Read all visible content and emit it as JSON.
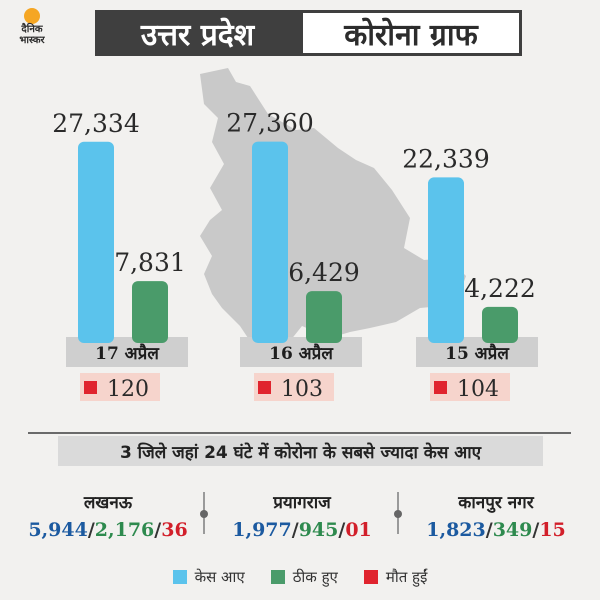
{
  "header": {
    "logo_line1": "दैनिक",
    "logo_line2": "भास्कर",
    "title_left": "उत्तर प्रदेश",
    "title_right": "कोरोना ग्राफ"
  },
  "colors": {
    "cases": "#5bc3ec",
    "recovered": "#4a9b6a",
    "deaths": "#e0242e",
    "date_band": "#cfcfcf",
    "death_box": "#f6d4cc",
    "map": "#c9c9c9"
  },
  "chart_data": {
    "type": "bar",
    "categories": [
      "17 अप्रैल",
      "16 अप्रैल",
      "15 अप्रैल"
    ],
    "series": [
      {
        "values": [
          27334,
          27360,
          22339
        ],
        "labels": [
          "27,334",
          "27,360",
          "22,339"
        ]
      },
      {
        "values": [
          7831,
          6429,
          4222
        ],
        "labels": [
          "7,831",
          "6,429",
          "4,222"
        ]
      }
    ],
    "deaths": [
      120,
      103,
      104
    ],
    "deaths_labels": [
      "120",
      "103",
      "104"
    ],
    "ylim": [
      0,
      28000
    ]
  },
  "subtitle": "3 जिले जहां 24 घंटे में कोरोना के सबसे ज्यादा केस आए",
  "districts": [
    {
      "name": "लखनऊ",
      "cases": "5,944",
      "recovered": "2,176",
      "deaths": "36"
    },
    {
      "name": "प्रयागराज",
      "cases": "1,977",
      "recovered": "945",
      "deaths": "01"
    },
    {
      "name": "कानपुर नगर",
      "cases": "1,823",
      "recovered": "349",
      "deaths": "15"
    }
  ],
  "sep": "/",
  "legend": {
    "cases": "केस आए",
    "recovered": "ठीक हुए",
    "deaths": "मौत हुईं"
  }
}
